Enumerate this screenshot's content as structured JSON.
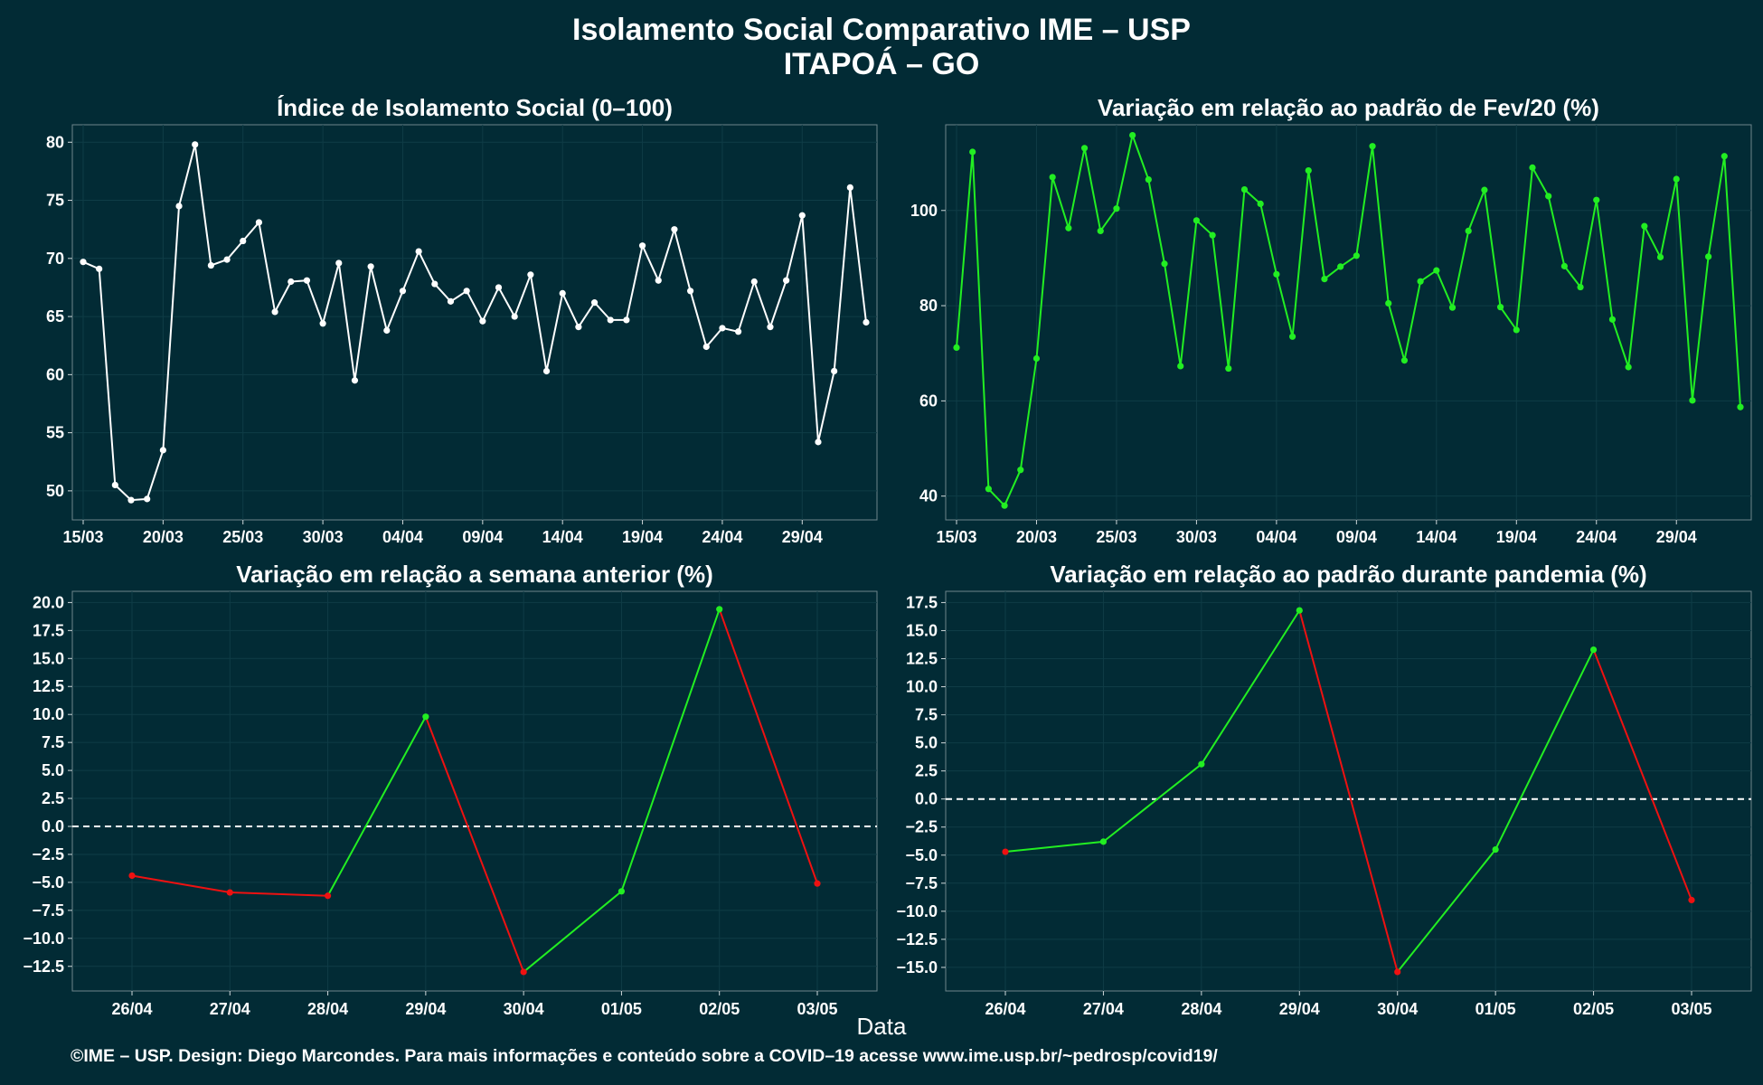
{
  "title": "Isolamento Social Comparativo IME – USP",
  "subtitle": "ITAPOÁ – GO",
  "x_axis_label": "Data",
  "footer": "©IME – USP. Design: Diego Marcondes. Para mais informações e conteúdo sobre a COVID–19 acesse www.ime.usp.br/~pedrosp/covid19/",
  "colors": {
    "background": "#022b35",
    "isolation_line": "#ffffff",
    "increase": "#22ee22",
    "decrease": "#ee1111",
    "zero_line": "#ffffff"
  },
  "chart_data": [
    {
      "type": "line",
      "title": "Índice de Isolamento Social (0–100)",
      "x_start": "15/03",
      "x_ticks": [
        "15/03",
        "20/03",
        "25/03",
        "30/03",
        "04/04",
        "09/04",
        "14/04",
        "19/04",
        "24/04",
        "29/04"
      ],
      "ylim": [
        47.5,
        81.5
      ],
      "y_ticks": [
        50,
        55,
        60,
        65,
        70,
        75,
        80
      ],
      "grid": true,
      "values": [
        69.7,
        69.1,
        50.5,
        49.2,
        49.3,
        53.5,
        74.5,
        79.8,
        69.4,
        69.9,
        71.5,
        73.1,
        65.4,
        68.0,
        68.1,
        64.4,
        69.6,
        59.5,
        69.3,
        63.8,
        67.2,
        70.6,
        67.8,
        66.3,
        67.2,
        64.6,
        67.5,
        65.0,
        68.6,
        60.3,
        67.0,
        64.1,
        66.2,
        64.7,
        64.7,
        71.1,
        68.1,
        72.5,
        67.2,
        62.4,
        64.0,
        63.7,
        68.0,
        64.1,
        68.1,
        73.7,
        54.2,
        60.3,
        76.1,
        64.5
      ],
      "color": "#ffffff"
    },
    {
      "type": "line",
      "title": "Variação em relação ao padrão de Fev/20 (%)",
      "x_start": "15/03",
      "x_ticks": [
        "15/03",
        "20/03",
        "25/03",
        "30/03",
        "04/04",
        "09/04",
        "14/04",
        "19/04",
        "24/04",
        "29/04"
      ],
      "ylim": [
        35,
        118
      ],
      "y_ticks": [
        40,
        60,
        80,
        100
      ],
      "grid": true,
      "values": [
        71.2,
        112.3,
        41.5,
        38.0,
        45.5,
        68.9,
        107.0,
        96.3,
        113.1,
        95.7,
        100.4,
        115.8,
        106.5,
        88.8,
        67.3,
        97.9,
        94.8,
        66.8,
        104.4,
        101.4,
        86.6,
        73.5,
        108.4,
        85.6,
        88.2,
        90.5,
        113.5,
        80.5,
        68.5,
        85.1,
        87.4,
        79.6,
        95.7,
        104.3,
        79.7,
        74.9,
        109.0,
        103.0,
        88.3,
        83.9,
        102.2,
        77.1,
        67.1,
        96.7,
        90.2,
        106.6,
        60.1,
        90.3,
        111.4,
        58.7
      ],
      "color": "#22ee22"
    },
    {
      "type": "line",
      "title": "Variação em relação a semana anterior (%)",
      "categories": [
        "26/04",
        "27/04",
        "28/04",
        "29/04",
        "30/04",
        "01/05",
        "02/05",
        "03/05"
      ],
      "values": [
        -4.4,
        -5.9,
        -6.2,
        9.8,
        -13.0,
        -5.8,
        19.4,
        -5.1
      ],
      "ylim": [
        -14.7,
        21.0
      ],
      "y_ticks": [
        "20.0",
        "17.5",
        "15.0",
        "12.5",
        "10.0",
        "7.5",
        "5.0",
        "2.5",
        "0.0",
        "−2.5",
        "−5.0",
        "−7.5",
        "−10.0",
        "−12.5"
      ],
      "reference_line": 0,
      "grid": true
    },
    {
      "type": "line",
      "title": "Variação em relação ao padrão durante pandemia (%)",
      "categories": [
        "26/04",
        "27/04",
        "28/04",
        "29/04",
        "30/04",
        "01/05",
        "02/05",
        "03/05"
      ],
      "values": [
        -4.7,
        -3.8,
        3.1,
        16.8,
        -15.4,
        -4.5,
        13.3,
        -9.0
      ],
      "ylim": [
        -17.1,
        18.5
      ],
      "y_ticks": [
        "17.5",
        "15.0",
        "12.5",
        "10.0",
        "7.5",
        "5.0",
        "2.5",
        "0.0",
        "−2.5",
        "−5.0",
        "−7.5",
        "−10.0",
        "−12.5",
        "−15.0"
      ],
      "reference_line": 0,
      "grid": true
    }
  ]
}
